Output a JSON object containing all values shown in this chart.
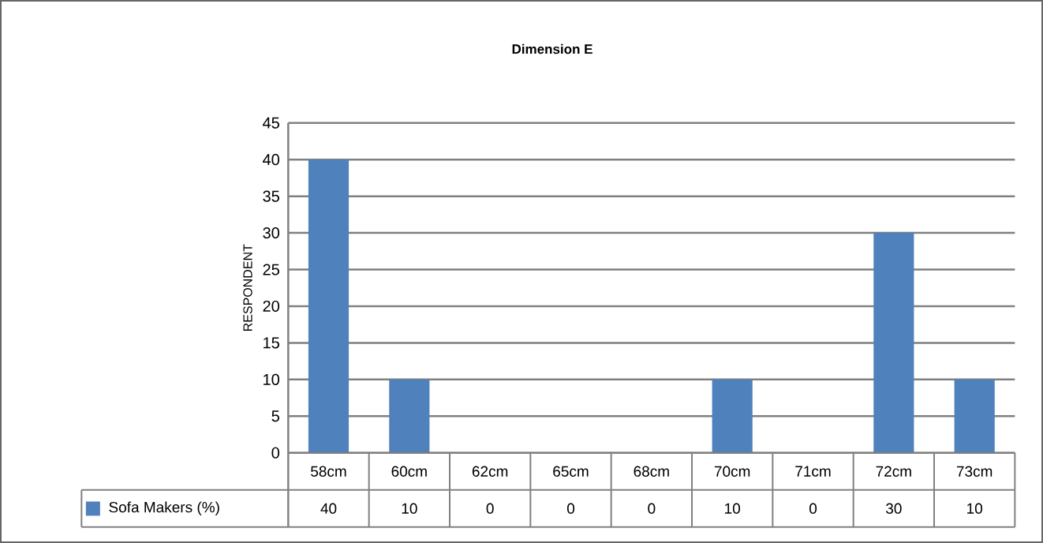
{
  "chart_data": {
    "type": "bar",
    "title": "Dimension E",
    "ylabel": "RESPONDENT",
    "categories": [
      "58cm",
      "60cm",
      "62cm",
      "65cm",
      "68cm",
      "70cm",
      "71cm",
      "72cm",
      "73cm"
    ],
    "series": [
      {
        "name": "Sofa Makers (%)",
        "color": "#4f81bd",
        "values": [
          40,
          10,
          0,
          0,
          0,
          10,
          0,
          30,
          10
        ]
      }
    ],
    "ylim": [
      0,
      45
    ],
    "yticks": [
      0,
      5,
      10,
      15,
      20,
      25,
      30,
      35,
      40,
      45
    ],
    "grid": "y",
    "legend": "bottom",
    "data_labels": true
  }
}
